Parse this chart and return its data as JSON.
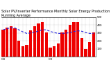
{
  "title": "Solar PV/Inverter Performance Monthly Solar Energy Production Running Average",
  "values": [
    340,
    370,
    390,
    360,
    200,
    130,
    150,
    330,
    390,
    420,
    440,
    310,
    115,
    130,
    165,
    310,
    340,
    400,
    440,
    435,
    240,
    100,
    185,
    310
  ],
  "running_avg": [
    340,
    355,
    367,
    365,
    340,
    315,
    295,
    300,
    310,
    325,
    340,
    340,
    320,
    305,
    295,
    295,
    298,
    305,
    318,
    328,
    322,
    305,
    295,
    295
  ],
  "bar_color": "#ee0000",
  "avg_color": "#2222dd",
  "ylim": [
    0,
    500
  ],
  "yticks": [
    100,
    200,
    300,
    400,
    500
  ],
  "background_color": "#ffffff",
  "grid_color": "#999999",
  "title_fontsize": 3.5,
  "tick_fontsize": 2.8,
  "fig_width": 1.6,
  "fig_height": 1.0,
  "dpi": 100
}
